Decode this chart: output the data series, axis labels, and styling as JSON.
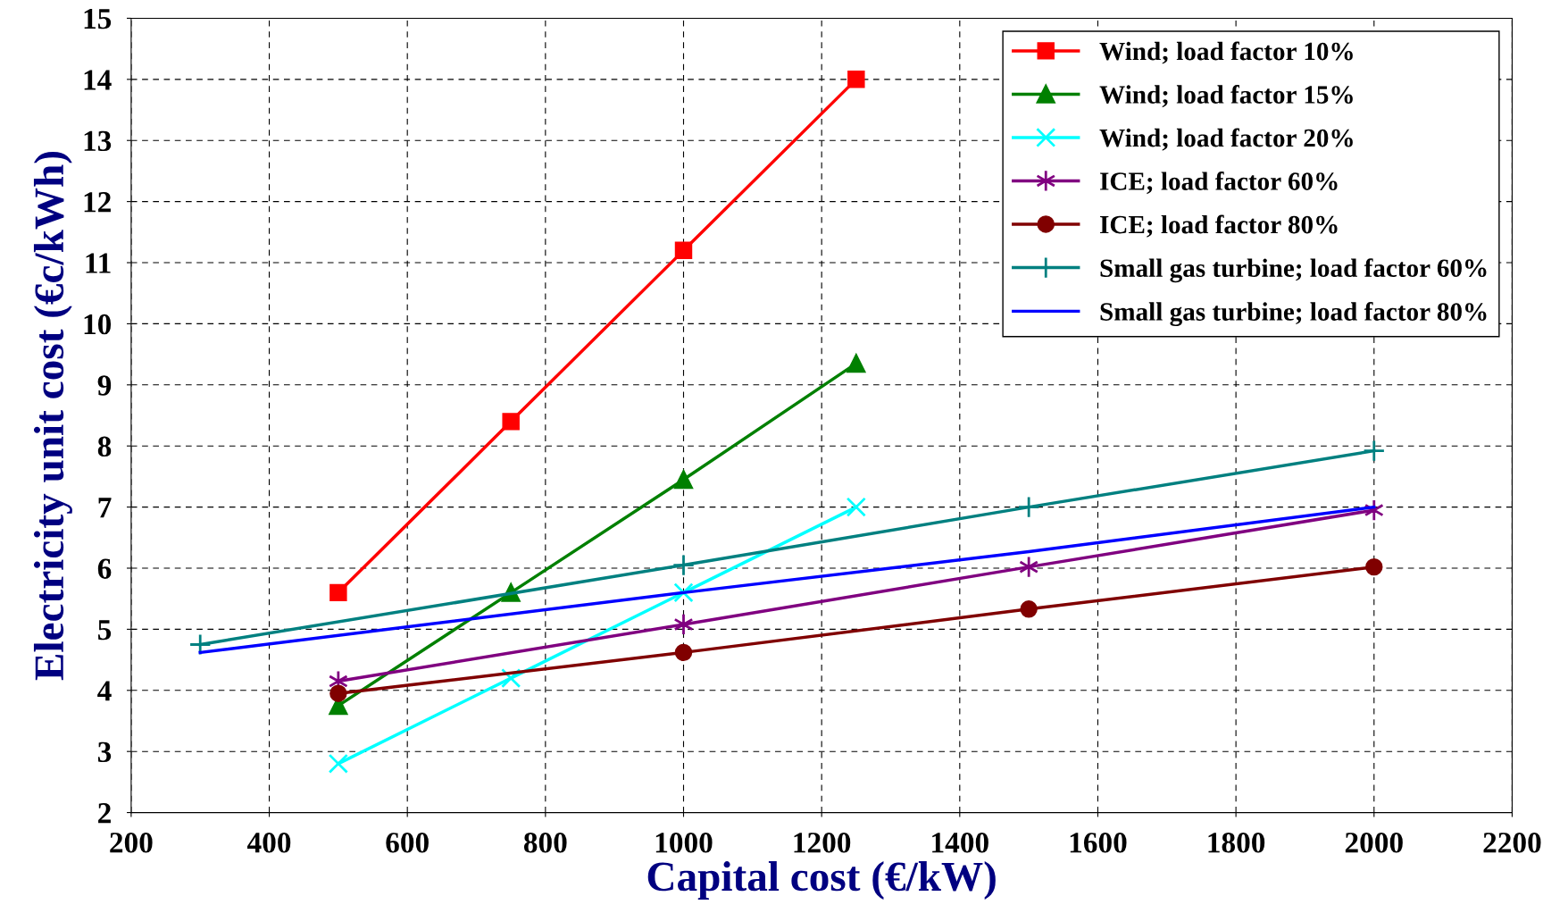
{
  "chart_data": {
    "type": "line",
    "xlabel": "Capital cost (€/kW)",
    "ylabel": "Electricity unit cost (€c/kWh)",
    "xlim": [
      200,
      2200
    ],
    "xticks": [
      200,
      400,
      600,
      800,
      1000,
      1200,
      1400,
      1600,
      1800,
      2000,
      2200
    ],
    "ylim": [
      2,
      15
    ],
    "yticks": [
      2,
      3,
      4,
      5,
      6,
      7,
      8,
      9,
      10,
      11,
      12,
      13,
      14,
      15
    ],
    "grid": true,
    "legend": "top right",
    "line_style": "solid",
    "series": [
      {
        "name": "Wind; load factor 10%",
        "color": "#ff0000",
        "marker": "square",
        "x": [
          500,
          750,
          1000,
          1250
        ],
        "values": [
          5.6,
          8.4,
          11.2,
          14.0
        ]
      },
      {
        "name": "Wind; load factor 15%",
        "color": "#008000",
        "marker": "triangle",
        "x": [
          500,
          750,
          1000,
          1250
        ],
        "values": [
          3.75,
          5.6,
          7.45,
          9.35
        ]
      },
      {
        "name": "Wind; load factor 20%",
        "color": "#00ffff",
        "marker": "cross",
        "x": [
          500,
          750,
          1000,
          1250
        ],
        "values": [
          2.8,
          4.2,
          5.6,
          7.0
        ]
      },
      {
        "name": "ICE; load factor 60%",
        "color": "#800080",
        "marker": "cross",
        "x": [
          500,
          1000,
          1500,
          2000
        ],
        "values": [
          4.15,
          5.08,
          6.02,
          6.95
        ]
      },
      {
        "name": "ICE; load factor 80%",
        "color": "#800000",
        "marker": "circle",
        "x": [
          500,
          1000,
          1500,
          2000
        ],
        "values": [
          3.95,
          4.62,
          5.33,
          6.02
        ]
      },
      {
        "name": "Small gas turbine; load factor 60%",
        "color": "#008080",
        "marker": "cross",
        "x": [
          300,
          1000,
          1500,
          2000
        ],
        "values": [
          4.75,
          6.05,
          7.0,
          7.92
        ]
      },
      {
        "name": "Small gas turbine; load factor 80%",
        "color": "#0000ff",
        "marker": "none",
        "x": [
          300,
          1000,
          1500,
          2000
        ],
        "values": [
          4.62,
          5.6,
          6.27,
          7.0
        ]
      }
    ]
  }
}
